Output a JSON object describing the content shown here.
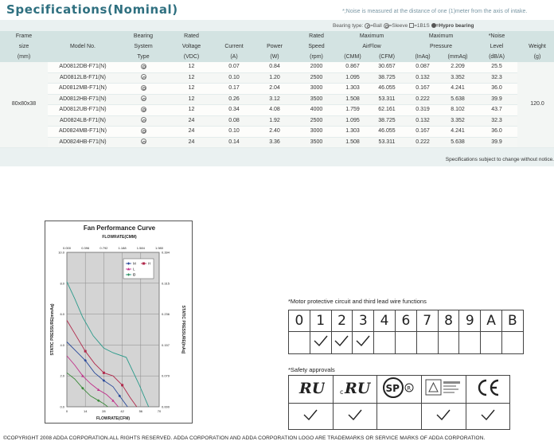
{
  "header": {
    "title": "Specifications(Nominal)",
    "noise_note": "*;Noise is measured at the distance of one (1)meter from the axis of intake."
  },
  "bearing_legend": {
    "label": "Bearing type:",
    "ball": "=Ball",
    "sleeve": "=Sleeve",
    "other": "=1B1S",
    "hypro": "=Hypro bearing"
  },
  "spec_table": {
    "headers": [
      {
        "key": "frame",
        "lines": [
          "Frame",
          "size",
          "(mm)"
        ]
      },
      {
        "key": "model",
        "lines": [
          "",
          "Model No.",
          ""
        ]
      },
      {
        "key": "bearing",
        "lines": [
          "Bearing",
          "System",
          "Type"
        ]
      },
      {
        "key": "voltage",
        "lines": [
          "Rated",
          "Voltage",
          "(VDC)"
        ]
      },
      {
        "key": "current",
        "lines": [
          "",
          "Current",
          "(A)"
        ]
      },
      {
        "key": "power",
        "lines": [
          "",
          "Power",
          "(W)"
        ]
      },
      {
        "key": "speed",
        "lines": [
          "Rated",
          "Speed",
          "(rpm)"
        ]
      },
      {
        "key": "airflow",
        "lines": [
          "Maximum",
          "AirFlow",
          "(CMM)   (CFM)"
        ]
      },
      {
        "key": "pressure",
        "lines": [
          "Maximum",
          "Pressure",
          "(InAq)   (mmAq)"
        ]
      },
      {
        "key": "noise",
        "lines": [
          "*Noise",
          "Level",
          "(dB/A)"
        ]
      },
      {
        "key": "weight",
        "lines": [
          "",
          "Weight",
          "(g)"
        ]
      }
    ],
    "frame_size": "80x80x38",
    "weight": "120.0",
    "rows": [
      {
        "model": "AD0812DB-F71(N)",
        "voltage": "12",
        "current": "0.07",
        "power": "0.84",
        "speed": "2000",
        "cmm": "0.867",
        "cfm": "30.657",
        "inaq": "0.087",
        "mmaq": "2.209",
        "noise": "25.5"
      },
      {
        "model": "AD0812LB-F71(N)",
        "voltage": "12",
        "current": "0.10",
        "power": "1.20",
        "speed": "2500",
        "cmm": "1.095",
        "cfm": "38.725",
        "inaq": "0.132",
        "mmaq": "3.352",
        "noise": "32.3"
      },
      {
        "model": "AD0812MB-F71(N)",
        "voltage": "12",
        "current": "0.17",
        "power": "2.04",
        "speed": "3000",
        "cmm": "1.303",
        "cfm": "46.055",
        "inaq": "0.167",
        "mmaq": "4.241",
        "noise": "36.0"
      },
      {
        "model": "AD0812HB-F71(N)",
        "voltage": "12",
        "current": "0.26",
        "power": "3.12",
        "speed": "3500",
        "cmm": "1.508",
        "cfm": "53.311",
        "inaq": "0.222",
        "mmaq": "5.638",
        "noise": "39.9"
      },
      {
        "model": "AD0812UB-F71(N)",
        "voltage": "12",
        "current": "0.34",
        "power": "4.08",
        "speed": "4000",
        "cmm": "1.759",
        "cfm": "62.161",
        "inaq": "0.319",
        "mmaq": "8.102",
        "noise": "43.7"
      },
      {
        "model": "AD0824LB-F71(N)",
        "voltage": "24",
        "current": "0.08",
        "power": "1.92",
        "speed": "2500",
        "cmm": "1.095",
        "cfm": "38.725",
        "inaq": "0.132",
        "mmaq": "3.352",
        "noise": "32.3"
      },
      {
        "model": "AD0824MB-F71(N)",
        "voltage": "24",
        "current": "0.10",
        "power": "2.40",
        "speed": "3000",
        "cmm": "1.303",
        "cfm": "46.055",
        "inaq": "0.167",
        "mmaq": "4.241",
        "noise": "36.0"
      },
      {
        "model": "AD0824HB-F71(N)",
        "voltage": "24",
        "current": "0.14",
        "power": "3.36",
        "speed": "3500",
        "cmm": "1.508",
        "cfm": "53.311",
        "inaq": "0.222",
        "mmaq": "5.638",
        "noise": "39.9"
      }
    ],
    "note": "Specifications subject to change without notice."
  },
  "chart_data": {
    "type": "line",
    "title": "Fan Performance Curve",
    "top_axis_label": "FLOWRATE(CMM)",
    "top_ticks": [
      "0.000",
      "0.396",
      "0.792",
      "1.188",
      "1.584",
      "1.980"
    ],
    "xlabel": "FLOWRATE(CFM)",
    "x_ticks": [
      "0",
      "14",
      "28",
      "42",
      "56",
      "70"
    ],
    "ylabel": "STATIC PRESSURE(mmAq)",
    "y_ticks": [
      "0.0",
      "2.0",
      "4.0",
      "6.0",
      "8.0",
      "10.0"
    ],
    "y2label": "STATIC PRESSURE(InAq)",
    "y2_ticks": [
      "0.000",
      "0.079",
      "0.157",
      "0.236",
      "0.315",
      "0.394"
    ],
    "xlim": [
      0,
      70
    ],
    "ylim": [
      0,
      10
    ],
    "grid": true,
    "legend_position": "top-right",
    "series": [
      {
        "name": "U",
        "color": "#2a9a8a",
        "marker": "none",
        "x": [
          0,
          6,
          12,
          20,
          28,
          35,
          45,
          55,
          62
        ],
        "y": [
          8.1,
          7.0,
          5.8,
          4.6,
          3.8,
          3.5,
          3.2,
          1.4,
          0
        ]
      },
      {
        "name": "H",
        "color": "#b0284a",
        "marker": "square",
        "x": [
          0,
          7,
          14,
          21,
          28,
          35,
          42,
          48,
          53
        ],
        "y": [
          5.6,
          4.6,
          3.6,
          2.8,
          2.2,
          2.0,
          1.4,
          0.6,
          0
        ]
      },
      {
        "name": "M",
        "color": "#2a4a9a",
        "marker": "diamond",
        "x": [
          0,
          7,
          14,
          21,
          28,
          35,
          40,
          46
        ],
        "y": [
          4.2,
          3.6,
          3.0,
          2.2,
          1.7,
          1.3,
          0.7,
          0
        ]
      },
      {
        "name": "L",
        "color": "#c0308a",
        "marker": "triangle",
        "x": [
          0,
          6,
          12,
          18,
          24,
          30,
          35,
          39
        ],
        "y": [
          3.3,
          2.7,
          2.0,
          1.5,
          1.1,
          0.8,
          0.4,
          0
        ]
      },
      {
        "name": "D",
        "color": "#3a8a3a",
        "marker": "diamond",
        "x": [
          0,
          6,
          12,
          18,
          24,
          28,
          31
        ],
        "y": [
          2.2,
          1.8,
          1.2,
          0.7,
          0.4,
          0.2,
          0
        ]
      }
    ]
  },
  "motor_functions": {
    "title": "*Motor protective circuit and third lead wire functions",
    "codes": [
      "0",
      "1",
      "2",
      "3",
      "4",
      "6",
      "7",
      "8",
      "9",
      "A",
      "B"
    ],
    "supported": [
      false,
      true,
      true,
      true,
      false,
      false,
      false,
      false,
      false,
      false,
      false
    ]
  },
  "safety": {
    "title": "*Safety approvals",
    "approvals": [
      {
        "name": "UL",
        "icon": "ul-recognized-icon",
        "checked": true
      },
      {
        "name": "cUL",
        "icon": "cul-recognized-icon",
        "checked": true
      },
      {
        "name": "CSA",
        "icon": "csa-icon",
        "checked": false
      },
      {
        "name": "TUV",
        "icon": "tuv-icon",
        "checked": true
      },
      {
        "name": "CE",
        "icon": "ce-icon",
        "checked": true
      }
    ]
  },
  "footer": {
    "copyright": "©COPYRIGHT 2008 ADDA CORPORATION.ALL RIGHTS RESERVED. ADDA CORPORATION AND ADDA CORPORATION LOGO ARE TRADEMARKS OR SERVICE MARKS OF ADDA CORPORATION."
  },
  "colors": {
    "title": "#2f7080",
    "table_header_bg": "#d3e3e2",
    "table_bg": "#eaf1f1"
  }
}
